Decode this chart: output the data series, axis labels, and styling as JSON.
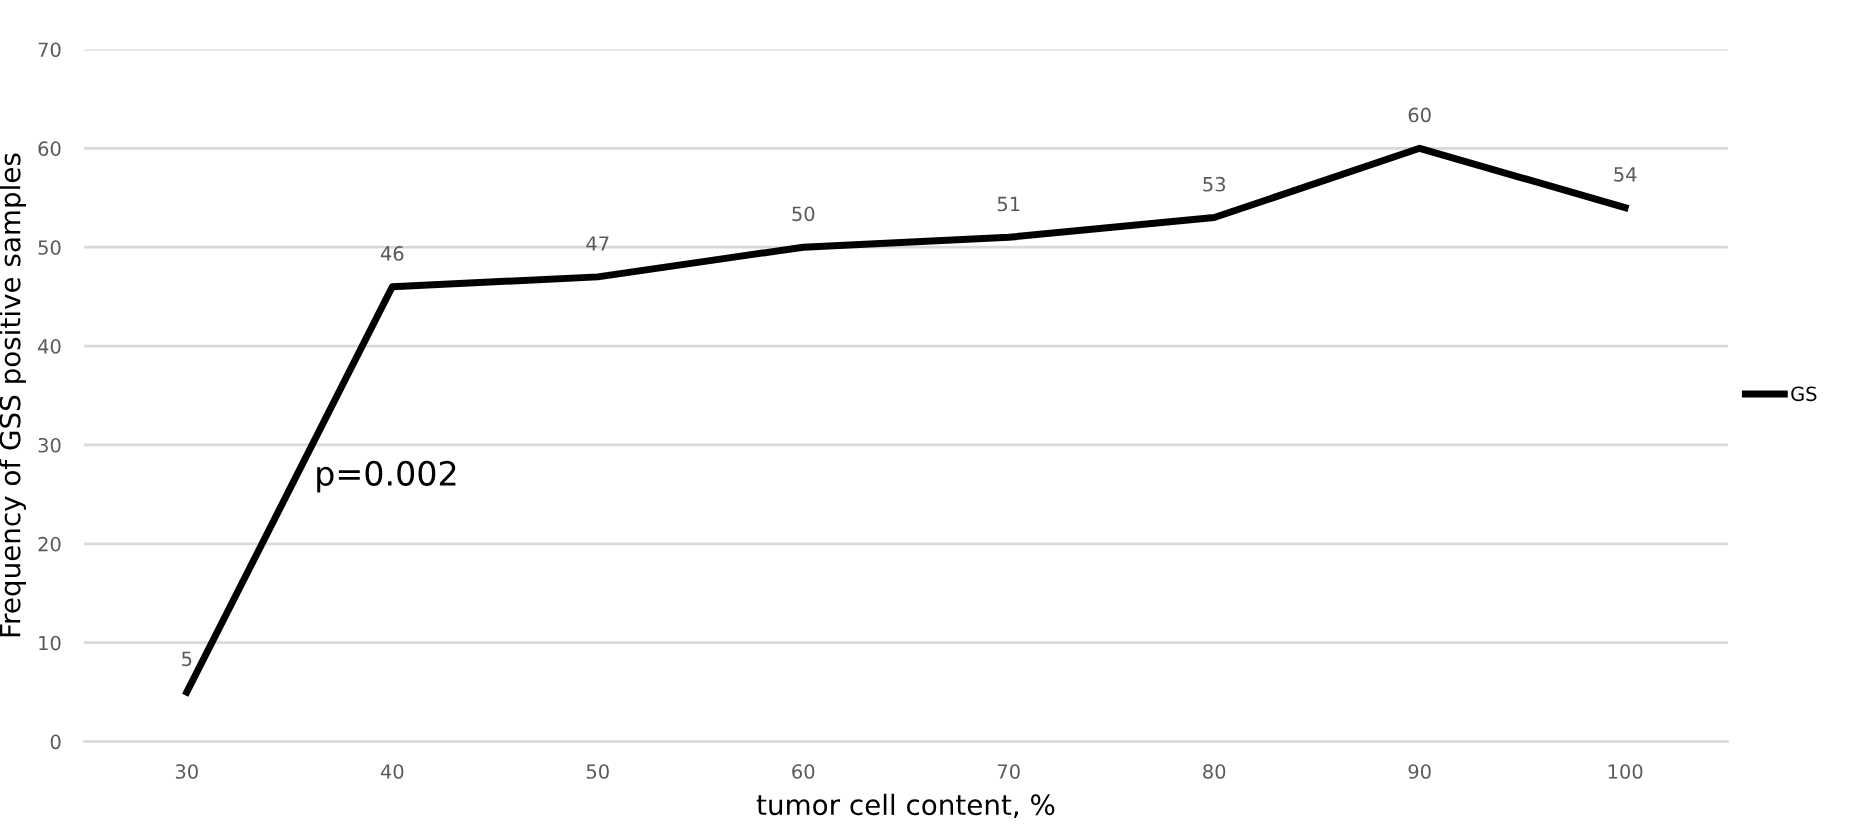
{
  "chart_data": {
    "type": "line",
    "xlabel": "tumor cell content, %",
    "ylabel": "Frequency of GSS positive samples",
    "categories": [
      "30",
      "40",
      "50",
      "60",
      "70",
      "80",
      "90",
      "100"
    ],
    "series": [
      {
        "name": "GS",
        "color": "#000000",
        "values": [
          5,
          46,
          47,
          50,
          51,
          53,
          60,
          54
        ]
      }
    ],
    "ylim": [
      0,
      70
    ],
    "yticks": [
      0,
      10,
      20,
      30,
      40,
      50,
      60,
      70
    ],
    "grid": "y",
    "legend": "right",
    "data_labels": true,
    "annotations": [
      "p=0.002"
    ]
  }
}
